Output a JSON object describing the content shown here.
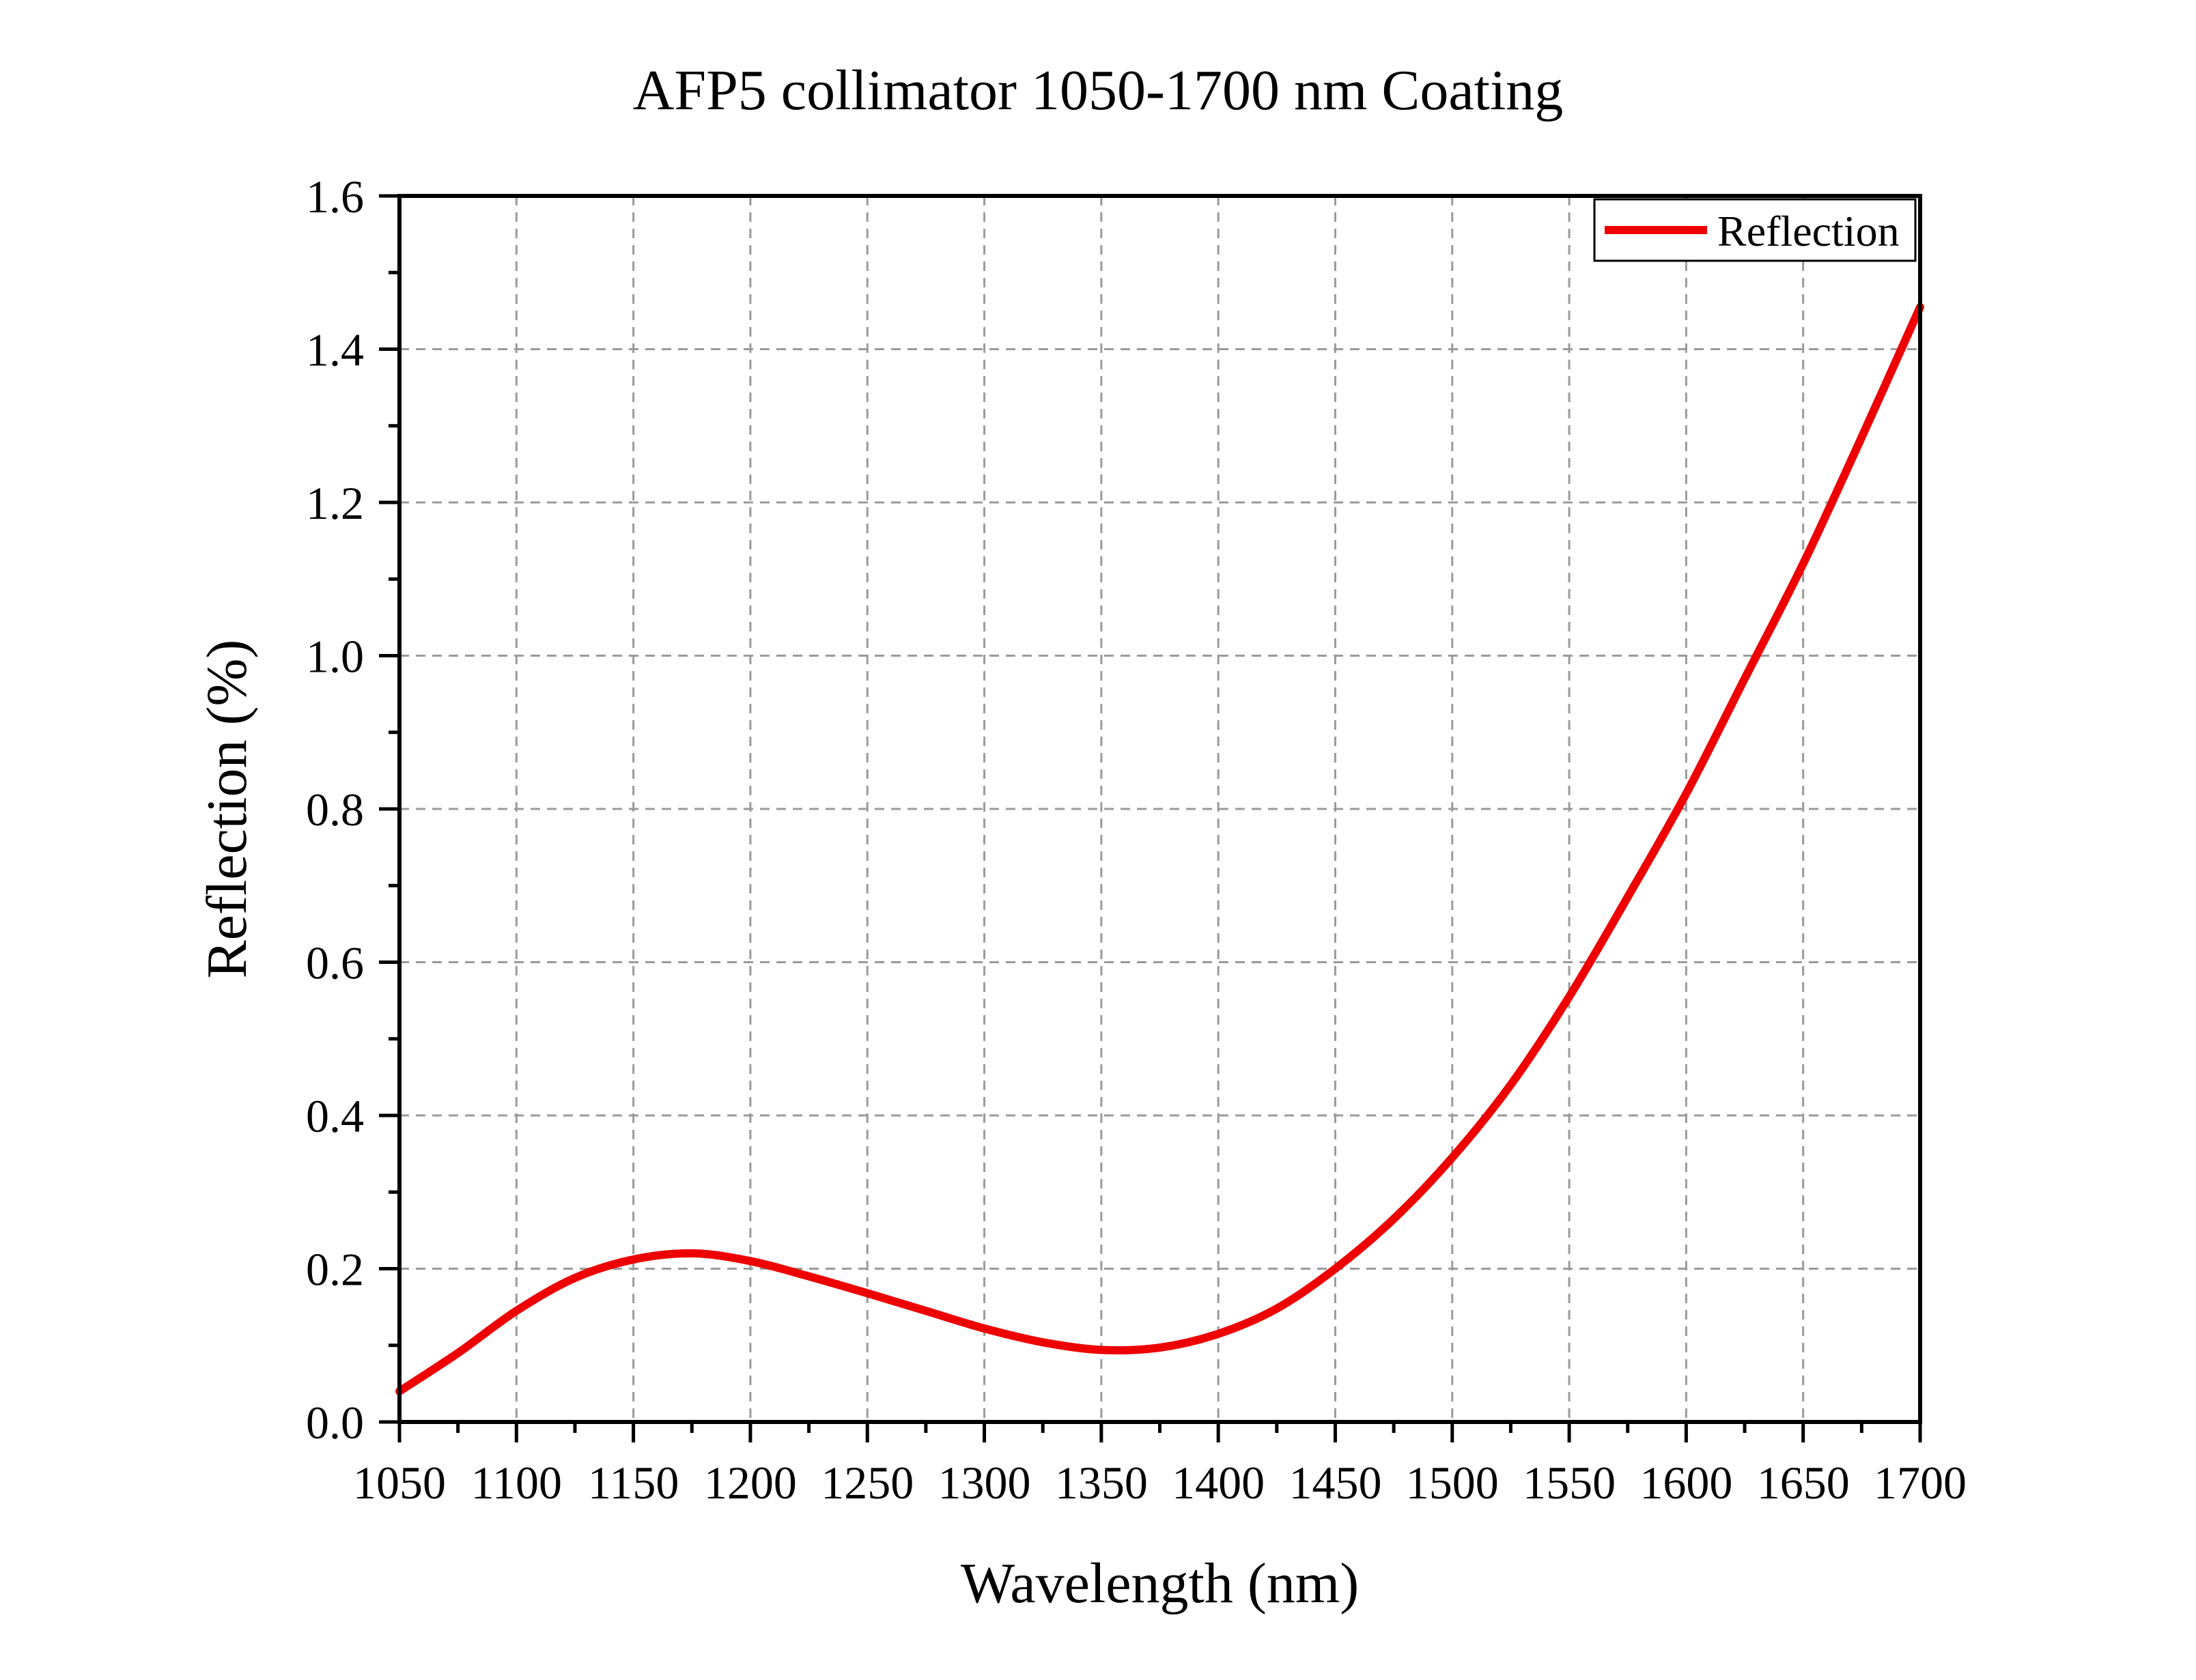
{
  "chart_data": {
    "type": "line",
    "title": "AFP5 collimator 1050-1700 nm Coating",
    "xlabel": "Wavelength (nm)",
    "ylabel": "Reflection (%)",
    "xlim": [
      1050,
      1700
    ],
    "ylim": [
      0.0,
      1.6
    ],
    "x_ticks": [
      "1050",
      "1100",
      "1150",
      "1200",
      "1250",
      "1300",
      "1350",
      "1400",
      "1450",
      "1500",
      "1550",
      "1600",
      "1650",
      "1700"
    ],
    "y_ticks": [
      "0.0",
      "0.2",
      "0.4",
      "0.6",
      "0.8",
      "1.0",
      "1.2",
      "1.4",
      "1.6"
    ],
    "grid": true,
    "legend_position": "top-right",
    "series": [
      {
        "name": "Reflection",
        "color": "#ee0000",
        "x": [
          1050,
          1075,
          1100,
          1125,
          1150,
          1175,
          1200,
          1225,
          1250,
          1275,
          1300,
          1325,
          1350,
          1375,
          1400,
          1425,
          1450,
          1475,
          1500,
          1525,
          1550,
          1575,
          1600,
          1625,
          1650,
          1675,
          1700
        ],
        "y": [
          0.04,
          0.09,
          0.145,
          0.188,
          0.212,
          0.22,
          0.21,
          0.19,
          0.168,
          0.145,
          0.122,
          0.104,
          0.094,
          0.097,
          0.115,
          0.148,
          0.2,
          0.265,
          0.345,
          0.44,
          0.555,
          0.685,
          0.82,
          0.97,
          1.12,
          1.285,
          1.455
        ]
      }
    ]
  }
}
